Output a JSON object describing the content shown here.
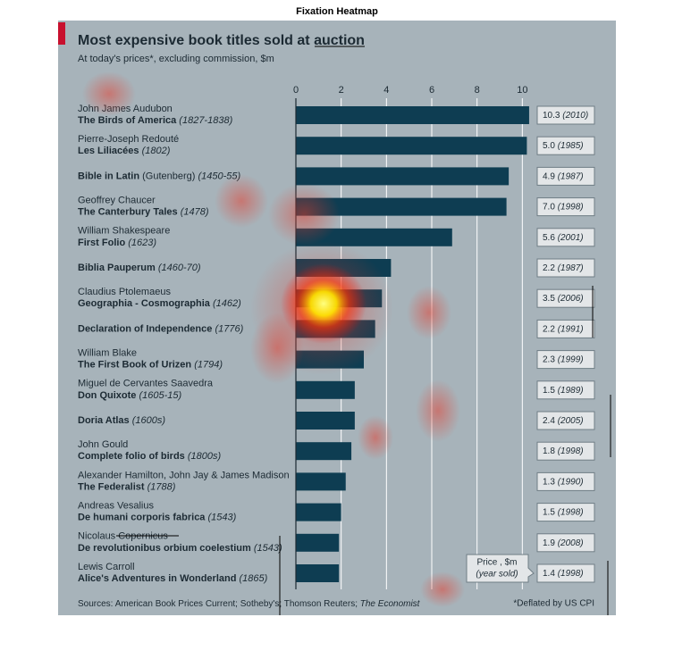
{
  "figure_title": "Fixation Heatmap",
  "chart_data": {
    "type": "bar",
    "orientation": "horizontal",
    "title": "Most expensive book titles sold at auction",
    "subtitle": "At today's prices*, excluding commission, $m",
    "authors": [
      "John James Audubon",
      "Pierre-Joseph Redouté",
      null,
      "Geoffrey Chaucer",
      "William Shakespeare",
      null,
      "Claudius Ptolemaeus",
      null,
      "William Blake",
      "Miguel de Cervantes Saavedra",
      null,
      "John Gould",
      "Alexander Hamilton, John Jay & James Madison",
      "Andreas Vesalius",
      "Nicolaus Copernicus",
      "Lewis Carroll"
    ],
    "categories": [
      "The Birds of America",
      "Les Liliacées",
      "Bible in Latin",
      "The Canterbury Tales",
      "First Folio",
      "Biblia Pauperum",
      "Geographia - Cosmographia",
      "Declaration of Independence",
      "The First Book of Urizen",
      "Don Quixote",
      "Doria Atlas",
      "Complete folio of birds",
      "The Federalist",
      "De humani corporis fabrica",
      "De revolutionibus orbium coelestium",
      "Alice's Adventures in Wonderland"
    ],
    "title_notes": [
      null,
      null,
      "(Gutenberg)",
      null,
      null,
      null,
      null,
      null,
      null,
      null,
      null,
      null,
      null,
      null,
      null,
      null
    ],
    "dates": [
      "(1827-1838)",
      "(1802)",
      "(1450-55)",
      "(1478)",
      "(1623)",
      "(1460-70)",
      "(1462)",
      "(1776)",
      "(1794)",
      "(1605-15)",
      "(1600s)",
      "(1800s)",
      "(1788)",
      "(1543)",
      "(1543)",
      "(1865)"
    ],
    "values": [
      10.3,
      10.2,
      9.4,
      9.3,
      6.9,
      4.2,
      3.8,
      3.5,
      3.0,
      2.6,
      2.6,
      2.45,
      2.2,
      2.0,
      1.9,
      1.9
    ],
    "color": "#0e3d52",
    "price_sold": [
      "10.3",
      "5.0",
      "4.9",
      "7.0",
      "5.6",
      "2.2",
      "3.5",
      "2.2",
      "2.3",
      "1.5",
      "2.4",
      "1.8",
      "1.3",
      "1.5",
      "1.9",
      "1.4"
    ],
    "year_sold": [
      "(2010)",
      "(1985)",
      "(1987)",
      "(1998)",
      "(2001)",
      "(1987)",
      "(2006)",
      "(1991)",
      "(1999)",
      "(1989)",
      "(2005)",
      "(1998)",
      "(1990)",
      "(1998)",
      "(2008)",
      "(1998)"
    ],
    "legend_title": "Price , $m",
    "legend_subtitle": "(year sold)",
    "xlim": [
      0,
      10.5
    ],
    "xticks": [
      0,
      2,
      4,
      6,
      8,
      10
    ],
    "grid": true,
    "source": "Sources: American Book Prices Current; Sotheby's; Thomson Reuters; ",
    "source_italic": "The Economist",
    "footnote": "*Deflated by US CPI"
  }
}
